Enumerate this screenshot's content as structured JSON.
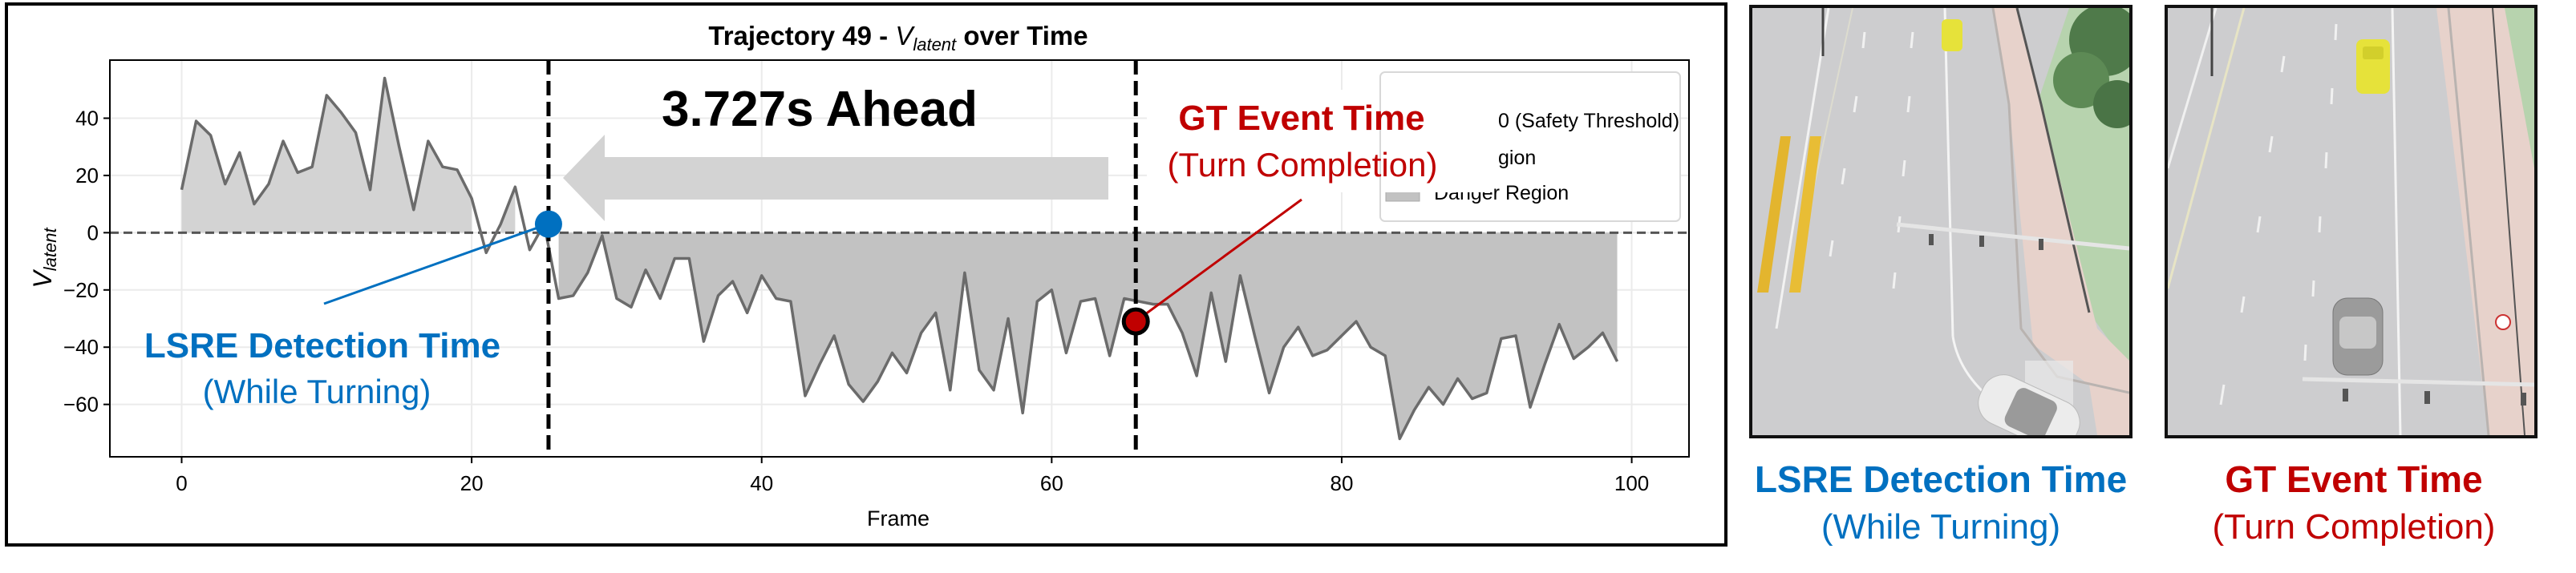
{
  "chart_data": {
    "type": "line",
    "title": {
      "prefix": "Trajectory 49 - ",
      "var": "V",
      "sub": "latent",
      "suffix": " over Time"
    },
    "xlabel": "Frame",
    "ylabel": {
      "var": "V",
      "sub": "latent"
    },
    "xlim": [
      -4.95,
      103.95
    ],
    "ylim": [
      -78.3,
      60.3
    ],
    "x_ticks": [
      0,
      20,
      40,
      60,
      80,
      100
    ],
    "y_ticks": [
      40,
      20,
      0,
      -20,
      -40,
      -60
    ],
    "grid": true,
    "x": [
      0,
      1,
      2,
      3,
      4,
      5,
      6,
      7,
      8,
      9,
      10,
      11,
      12,
      13,
      14,
      15,
      16,
      17,
      18,
      19,
      20,
      21,
      22,
      23,
      24,
      25,
      26,
      27,
      28,
      29,
      30,
      31,
      32,
      33,
      34,
      35,
      36,
      37,
      38,
      39,
      40,
      41,
      42,
      43,
      44,
      45,
      46,
      47,
      48,
      49,
      50,
      51,
      52,
      53,
      54,
      55,
      56,
      57,
      58,
      59,
      60,
      61,
      62,
      63,
      64,
      65,
      66,
      67,
      68,
      69,
      70,
      71,
      72,
      73,
      74,
      75,
      76,
      77,
      78,
      79,
      80,
      81,
      82,
      83,
      84,
      85,
      86,
      87,
      88,
      89,
      90,
      91,
      92,
      93,
      94,
      95,
      96,
      97,
      98,
      99
    ],
    "values": [
      15,
      39,
      34,
      17,
      28,
      10,
      17,
      32,
      21,
      23,
      48,
      42,
      35,
      15,
      54,
      30,
      8,
      32,
      23,
      22,
      12,
      -7,
      3,
      16,
      -6,
      3,
      -23,
      -22,
      -14,
      -1,
      -23,
      -26,
      -13,
      -23,
      -9,
      -9,
      -38,
      -22,
      -17,
      -28,
      -15,
      -23,
      -24,
      -57,
      -46,
      -36,
      -53,
      -59,
      -52,
      -42,
      -49,
      -35,
      -28,
      -55,
      -14,
      -48,
      -55,
      -30,
      -63,
      -24,
      -20,
      -42,
      -24,
      -23,
      -43,
      -23,
      -24,
      -25,
      -25,
      -35,
      -50,
      -21,
      -45,
      -15,
      -36,
      -56,
      -40,
      -33,
      -43,
      -41,
      -36,
      -31,
      -40,
      -43,
      -72,
      -62,
      -54,
      -60,
      -51,
      -58,
      -56,
      -37,
      -36,
      -61,
      -46,
      -32,
      -44,
      -40,
      -35,
      -45
    ],
    "threshold": 0,
    "detection_frame": 25.3,
    "detection_value": 3,
    "gt_frame": 65.8,
    "gt_value": -31,
    "legend": {
      "position": "upper-right",
      "items": [
        {
          "label": "0 (Safety Threshold)",
          "kind": "dashed-line"
        },
        {
          "label": "gion",
          "kind": "patch-light"
        },
        {
          "label": "Danger Region",
          "kind": "patch"
        }
      ]
    },
    "colors": {
      "line": "#6b6b6b",
      "safe_fill": "#d3d3d3",
      "danger_fill": "#c2c2c2",
      "threshold": "#555555",
      "event_line": "#000000",
      "lsre": "#0070c0",
      "gt": "#c00000",
      "arrow": "#d3d3d3"
    }
  },
  "annotations": {
    "ahead": "3.727s Ahead",
    "lsre": {
      "title": "LSRE Detection Time",
      "sub": "(While Turning)"
    },
    "gt": {
      "title": "GT Event Time",
      "sub": "(Turn Completion)"
    }
  },
  "photos": [
    {
      "caption_title": "LSRE Detection Time",
      "caption_sub": "(While Turning)",
      "color": "#0070c0"
    },
    {
      "caption_title": "GT Event Time",
      "caption_sub": "(Turn Completion)",
      "color": "#c00000"
    }
  ]
}
